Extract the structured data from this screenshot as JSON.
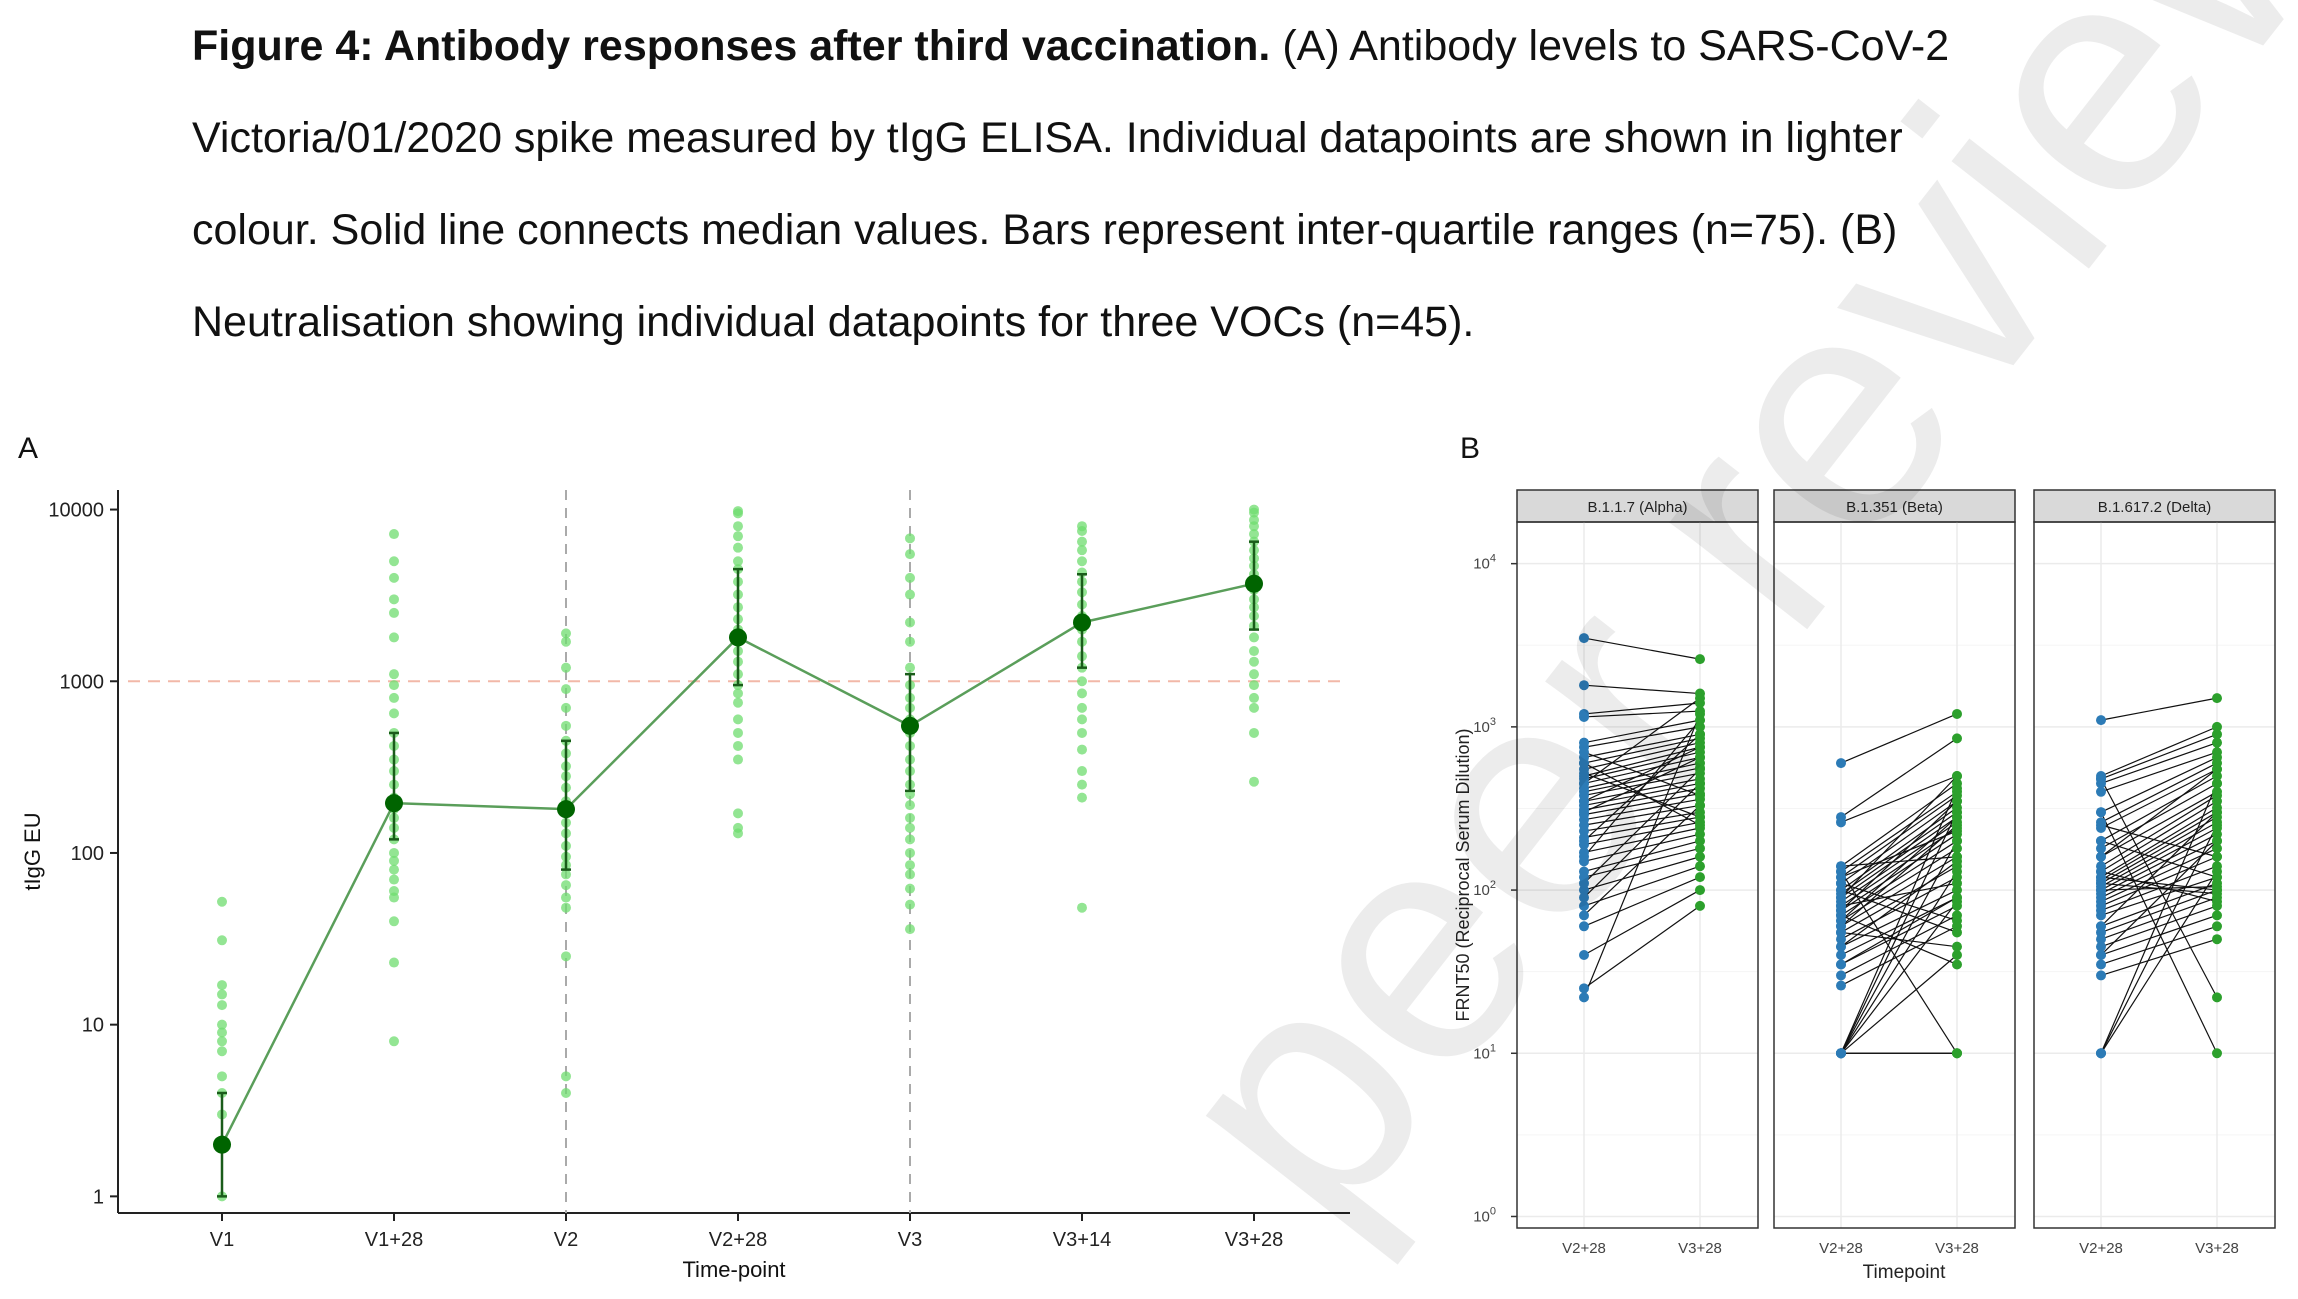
{
  "caption": {
    "bold": "Figure 4: Antibody responses after third vaccination.",
    "line1_rest": " (A) Antibody levels to SARS-CoV-2",
    "line2": "Victoria/01/2020 spike measured by tIgG ELISA. Individual datapoints are shown in lighter",
    "line3": "colour. Solid line connects median values. Bars represent inter-quartile ranges (n=75). (B)",
    "line4": "Neutralisation showing individual datapoints for three VOCs (n=45)."
  },
  "panel_a_label": "A",
  "panel_b_label": "B",
  "watermark": "peer reviewed",
  "colors": {
    "light_green": "#6fdc6f",
    "dark_green": "#006400",
    "line_green": "#5a9e5a",
    "blue": "#2c7bb6",
    "green_b": "#2ca02c",
    "threshold": "#f2b8a8",
    "facet_strip": "#d9d9d9"
  },
  "chart_data": [
    {
      "type": "scatter",
      "xlabel": "Time-point",
      "ylabel": "tIgG EU",
      "log_y": true,
      "ylim": [
        0.8,
        13000
      ],
      "y_ticks": [
        1,
        10,
        100,
        1000,
        10000
      ],
      "y_tick_labels": [
        "1",
        "10",
        "100",
        "1000",
        "10000"
      ],
      "threshold": 1000,
      "vertical_lines_at": [
        "V2",
        "V3"
      ],
      "categories": [
        "V1",
        "V1+28",
        "V2",
        "V2+28",
        "V3",
        "V3+14",
        "V3+28"
      ],
      "medians": [
        2,
        195,
        180,
        1800,
        550,
        2200,
        3700
      ],
      "iqr": [
        [
          1,
          4
        ],
        [
          120,
          500
        ],
        [
          80,
          450
        ],
        [
          950,
          4500
        ],
        [
          230,
          1100
        ],
        [
          1200,
          4200
        ],
        [
          2000,
          6500
        ]
      ],
      "points": [
        [
          52,
          31,
          17,
          15,
          13,
          10,
          9,
          8,
          7,
          5,
          4,
          3,
          2,
          2,
          1
        ],
        [
          7200,
          5000,
          4000,
          3000,
          2500,
          1800,
          1100,
          950,
          800,
          650,
          500,
          420,
          350,
          300,
          250,
          210,
          180,
          160,
          140,
          120,
          100,
          90,
          80,
          70,
          60,
          55,
          40,
          23,
          8
        ],
        [
          1900,
          1700,
          1200,
          900,
          700,
          550,
          450,
          380,
          320,
          280,
          240,
          200,
          170,
          150,
          130,
          110,
          95,
          85,
          75,
          65,
          55,
          48,
          25,
          5,
          4
        ],
        [
          9800,
          9500,
          8000,
          7000,
          6000,
          5000,
          4500,
          3800,
          3200,
          2700,
          2300,
          2000,
          1700,
          1500,
          1300,
          1100,
          950,
          850,
          750,
          600,
          500,
          420,
          350,
          170,
          140,
          130
        ],
        [
          6800,
          5500,
          4000,
          3200,
          2200,
          1700,
          1200,
          950,
          800,
          700,
          600,
          500,
          420,
          350,
          300,
          250,
          220,
          190,
          160,
          140,
          120,
          100,
          85,
          75,
          62,
          50,
          36
        ],
        [
          8000,
          7500,
          6500,
          5800,
          5000,
          4300,
          3800,
          3300,
          2800,
          2400,
          2000,
          1700,
          1400,
          1200,
          1000,
          850,
          700,
          600,
          500,
          400,
          300,
          250,
          210,
          48
        ],
        [
          10000,
          9600,
          8700,
          8000,
          7200,
          6500,
          5800,
          5200,
          4700,
          4200,
          3800,
          3400,
          3000,
          2700,
          2400,
          2100,
          1800,
          1500,
          1300,
          1100,
          950,
          800,
          700,
          500,
          260
        ]
      ]
    },
    {
      "type": "line",
      "xlabel": "Timepoint",
      "ylabel": "FRNT50 (Reciprocal Serum Dilution)",
      "log_y": true,
      "ylim": [
        0.85,
        18000
      ],
      "y_ticks": [
        1,
        10,
        100,
        1000,
        10000
      ],
      "y_tick_exponents": [
        "0",
        "1",
        "2",
        "3",
        "4"
      ],
      "x_categories": [
        "V2+28",
        "V3+28"
      ],
      "facets": [
        {
          "name": "B.1.1.7 (Alpha)",
          "pairs": [
            [
              3500,
              2600
            ],
            [
              1800,
              1600
            ],
            [
              1200,
              1400
            ],
            [
              1150,
              1250
            ],
            [
              800,
              1100
            ],
            [
              750,
              1000
            ],
            [
              650,
              900
            ],
            [
              600,
              850
            ],
            [
              550,
              800
            ],
            [
              500,
              750
            ],
            [
              480,
              700
            ],
            [
              450,
              650
            ],
            [
              420,
              600
            ],
            [
              400,
              560
            ],
            [
              380,
              520
            ],
            [
              350,
              480
            ],
            [
              330,
              450
            ],
            [
              310,
              420
            ],
            [
              290,
              390
            ],
            [
              270,
              360
            ],
            [
              250,
              330
            ],
            [
              230,
              300
            ],
            [
              210,
              280
            ],
            [
              190,
              260
            ],
            [
              170,
              240
            ],
            [
              150,
              220
            ],
            [
              130,
              200
            ],
            [
              120,
              180
            ],
            [
              100,
              160
            ],
            [
              80,
              140
            ],
            [
              60,
              120
            ],
            [
              40,
              100
            ],
            [
              25,
              80
            ],
            [
              22,
              1200
            ],
            [
              700,
              380
            ],
            [
              520,
              280
            ],
            [
              300,
              650
            ],
            [
              200,
              900
            ],
            [
              160,
              1100
            ],
            [
              110,
              550
            ],
            [
              90,
              450
            ],
            [
              70,
              330
            ],
            [
              600,
              250
            ],
            [
              450,
              1500
            ],
            [
              350,
              750
            ]
          ]
        },
        {
          "name": "B.1.351 (Beta)",
          "pairs": [
            [
              600,
              1200
            ],
            [
              280,
              850
            ],
            [
              260,
              500
            ],
            [
              140,
              450
            ],
            [
              130,
              400
            ],
            [
              120,
              380
            ],
            [
              110,
              350
            ],
            [
              100,
              320
            ],
            [
              95,
              300
            ],
            [
              90,
              280
            ],
            [
              85,
              260
            ],
            [
              80,
              240
            ],
            [
              75,
              220
            ],
            [
              70,
              200
            ],
            [
              65,
              180
            ],
            [
              60,
              160
            ],
            [
              55,
              140
            ],
            [
              50,
              120
            ],
            [
              45,
              100
            ],
            [
              40,
              90
            ],
            [
              35,
              80
            ],
            [
              30,
              70
            ],
            [
              26,
              60
            ],
            [
              10,
              420
            ],
            [
              10,
              300
            ],
            [
              10,
              200
            ],
            [
              10,
              130
            ],
            [
              10,
              85
            ],
            [
              10,
              40
            ],
            [
              10,
              10
            ],
            [
              10,
              10
            ],
            [
              130,
              10
            ],
            [
              70,
              35
            ],
            [
              100,
              55
            ],
            [
              60,
              250
            ],
            [
              45,
              150
            ],
            [
              90,
              500
            ],
            [
              120,
              230
            ],
            [
              35,
              90
            ],
            [
              75,
              350
            ],
            [
              110,
              65
            ],
            [
              140,
              160
            ],
            [
              55,
              45
            ],
            [
              80,
              110
            ],
            [
              65,
              280
            ]
          ]
        },
        {
          "name": "B.1.617.2 (Delta)",
          "pairs": [
            [
              1100,
              1500
            ],
            [
              500,
              1000
            ],
            [
              480,
              900
            ],
            [
              450,
              800
            ],
            [
              400,
              700
            ],
            [
              300,
              650
            ],
            [
              260,
              600
            ],
            [
              240,
              550
            ],
            [
              200,
              500
            ],
            [
              180,
              450
            ],
            [
              160,
              400
            ],
            [
              140,
              380
            ],
            [
              130,
              350
            ],
            [
              120,
              320
            ],
            [
              115,
              300
            ],
            [
              110,
              280
            ],
            [
              105,
              260
            ],
            [
              100,
              240
            ],
            [
              95,
              220
            ],
            [
              90,
              200
            ],
            [
              85,
              180
            ],
            [
              80,
              160
            ],
            [
              75,
              140
            ],
            [
              70,
              120
            ],
            [
              60,
              110
            ],
            [
              55,
              100
            ],
            [
              50,
              90
            ],
            [
              45,
              80
            ],
            [
              40,
              70
            ],
            [
              35,
              60
            ],
            [
              30,
              50
            ],
            [
              10,
              450
            ],
            [
              10,
              250
            ],
            [
              10,
              130
            ],
            [
              480,
              22
            ],
            [
              300,
              10
            ],
            [
              130,
              85
            ],
            [
              110,
              95
            ],
            [
              120,
              100
            ],
            [
              100,
              105
            ],
            [
              200,
              120
            ],
            [
              60,
              300
            ],
            [
              40,
              200
            ],
            [
              250,
              160
            ],
            [
              160,
              550
            ]
          ]
        }
      ]
    }
  ]
}
